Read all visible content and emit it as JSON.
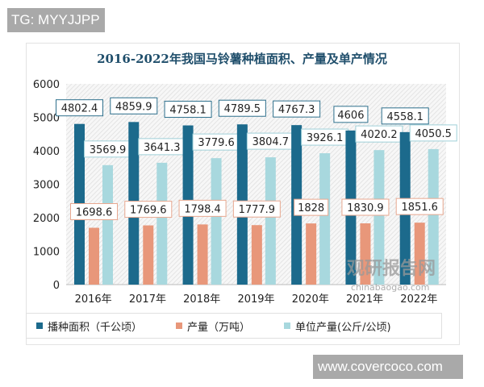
{
  "watermarks": {
    "top_left": "TG: MYYJJPP",
    "bottom_right": "www.covercoco.com",
    "chart_logo": "观研报告网",
    "chart_logo_url": "chinabaogao.com"
  },
  "chart_data": {
    "type": "bar",
    "title": "2016-2022年我国马铃薯种植面积、产量及单产情况",
    "categories": [
      "2016年",
      "2017年",
      "2018年",
      "2019年",
      "2020年",
      "2021年",
      "2022年"
    ],
    "series": [
      {
        "name": "播种面积（千公顷）",
        "color": "#1c6a8c",
        "values": [
          4802.4,
          4859.9,
          4758.1,
          4789.5,
          4767.3,
          4606,
          4558.1
        ]
      },
      {
        "name": "产量（万吨）",
        "color": "#e8977a",
        "values": [
          1698.6,
          1769.6,
          1798.4,
          1777.9,
          1828,
          1830.9,
          1851.6
        ]
      },
      {
        "name": "单位产量(公斤/公顷)",
        "color": "#a8d8de",
        "values": [
          3569.9,
          3641.3,
          3779.6,
          3804.7,
          3926.1,
          4020.2,
          4050.5
        ]
      }
    ],
    "yticks": [
      0,
      1000,
      2000,
      3000,
      4000,
      5000,
      6000
    ],
    "ylim": [
      0,
      6000
    ],
    "legend": "bottom",
    "grid": false
  }
}
